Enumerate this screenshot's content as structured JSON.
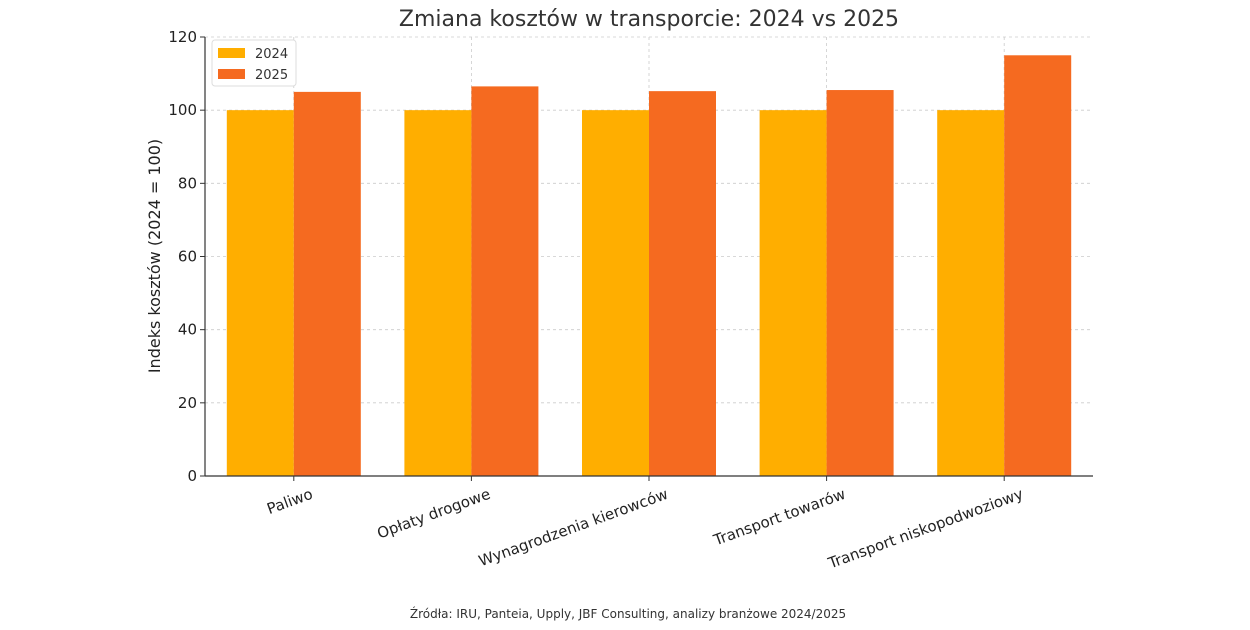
{
  "chart_data": {
    "type": "bar",
    "title": "Zmiana kosztów w transporcie: 2024 vs 2025",
    "xlabel": "",
    "ylabel": "Indeks kosztów (2024 = 100)",
    "categories": [
      "Paliwo",
      "Opłaty drogowe",
      "Wynagrodzenia kierowców",
      "Transport towarów",
      "Transport niskopodwoziowy"
    ],
    "series": [
      {
        "name": "2024",
        "color": "#ffae00",
        "values": [
          100,
          100,
          100,
          100,
          100
        ]
      },
      {
        "name": "2025",
        "color": "#f56a20",
        "values": [
          105,
          106.5,
          105.2,
          105.5,
          115
        ]
      }
    ],
    "ylim": [
      0,
      120
    ],
    "yticks": [
      "0",
      "20",
      "40",
      "60",
      "80",
      "100",
      "120"
    ],
    "grid": true,
    "legend_position": "top-left"
  },
  "source_note": "Źródła: IRU, Panteia, Upply, JBF Consulting, analizy branżowe 2024/2025"
}
